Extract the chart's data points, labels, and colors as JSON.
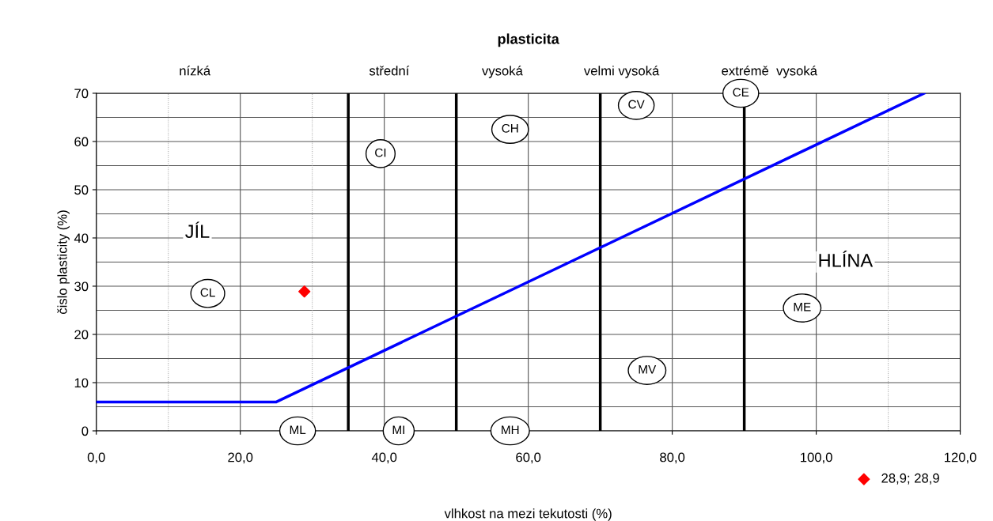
{
  "chart_data": {
    "type": "line",
    "title": "plasticita",
    "xlabel": "vlhkost na mezi tekutosti (%)",
    "ylabel": "čislo plasticity (%)",
    "xlim": [
      0,
      120
    ],
    "xticks": [
      {
        "value": 0,
        "label": "0,0"
      },
      {
        "value": 20,
        "label": "20,0"
      },
      {
        "value": 40,
        "label": "40,0"
      },
      {
        "value": 60,
        "label": "60,0"
      },
      {
        "value": 80,
        "label": "80,0"
      },
      {
        "value": 100,
        "label": "100,0"
      },
      {
        "value": 120,
        "label": "120,0"
      }
    ],
    "ylim": [
      0,
      70
    ],
    "yticks": [
      0,
      10,
      20,
      30,
      40,
      50,
      60,
      70
    ],
    "grid": true,
    "legend": "bottom right",
    "series": [
      {
        "color": "#0000ff",
        "x": [
          0,
          25,
          115
        ],
        "values": [
          6,
          6,
          70
        ]
      },
      {
        "type": "scatter",
        "name": "28,9; 28,9",
        "color": "#ff0000",
        "x": [
          28.9
        ],
        "values": [
          28.9
        ],
        "marker": "diamond"
      }
    ],
    "ref_lines": [
      {
        "axis": "x",
        "value": 35,
        "color": "#000000"
      },
      {
        "axis": "x",
        "value": 50,
        "color": "#000000"
      },
      {
        "axis": "x",
        "value": 70,
        "color": "#000000"
      },
      {
        "axis": "x",
        "value": 90,
        "color": "#000000"
      }
    ],
    "annotations": [
      "nízká",
      "střední",
      "vysoká",
      "velmi vysoká",
      "extrémě  vysoká",
      "JÍL",
      "HLÍNA",
      "CL",
      "CI",
      "CH",
      "CV",
      "CE",
      "ML",
      "MI",
      "MH",
      "MV",
      "ME"
    ]
  }
}
